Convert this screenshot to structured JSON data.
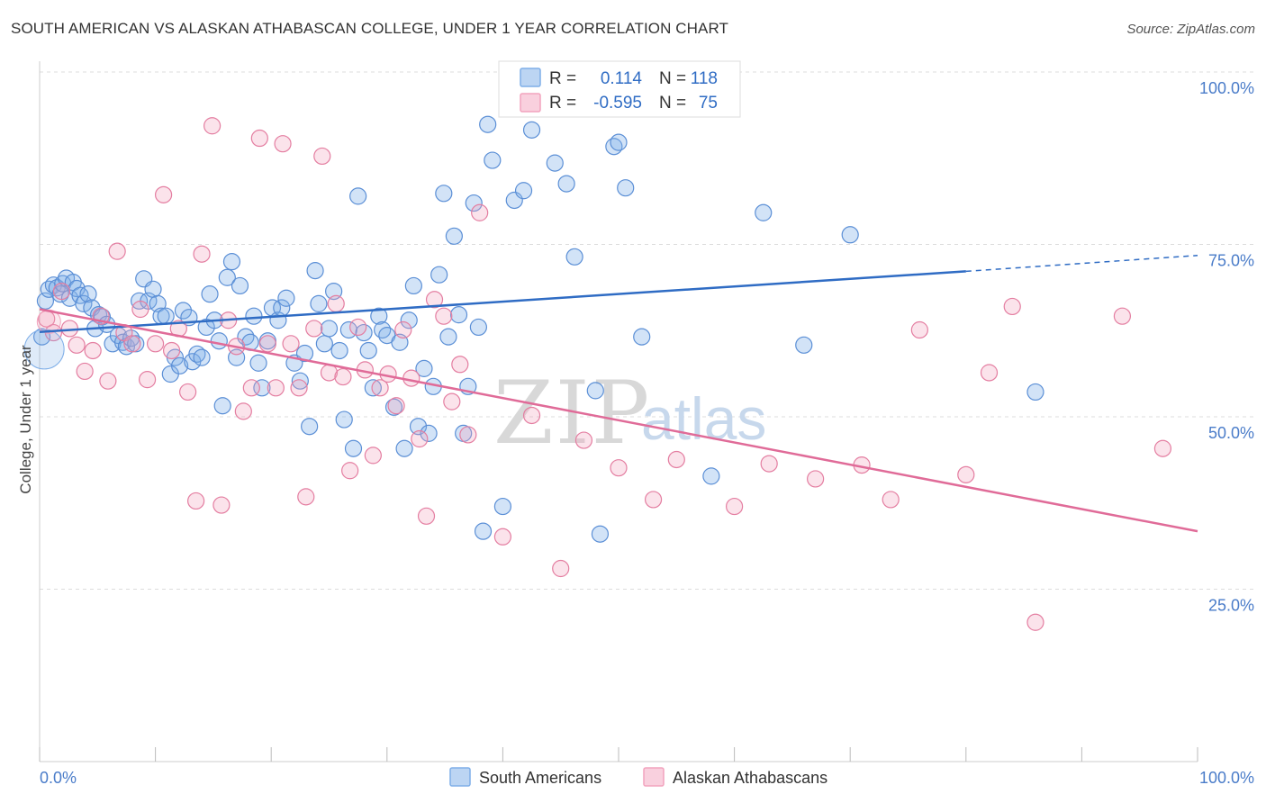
{
  "title": "SOUTH AMERICAN VS ALASKAN ATHABASCAN COLLEGE, UNDER 1 YEAR CORRELATION CHART",
  "source": "Source: ZipAtlas.com",
  "watermark": {
    "part1": "ZIP",
    "part2": "atlas"
  },
  "stats_legend": {
    "rows": [
      {
        "r_label": "R =",
        "r_value": "0.114",
        "n_label": "N =",
        "n_value": "118",
        "color": "#7eaee8"
      },
      {
        "r_label": "R =",
        "r_value": "-0.595",
        "n_label": "N =",
        "n_value": "75",
        "color": "#f2a3bd"
      }
    ]
  },
  "chart_data": {
    "type": "scatter",
    "title": "SOUTH AMERICAN VS ALASKAN ATHABASCAN COLLEGE, UNDER 1 YEAR CORRELATION CHART",
    "xlabel": "",
    "ylabel": "College, Under 1 year",
    "xlim": [
      0,
      100
    ],
    "ylim": [
      0,
      100
    ],
    "x_ticks": [
      "0.0%",
      "100.0%"
    ],
    "y_ticks": [
      {
        "value": 100,
        "label": "100.0%"
      },
      {
        "value": 75,
        "label": "75.0%"
      },
      {
        "value": 50,
        "label": "50.0%"
      },
      {
        "value": 25,
        "label": "25.0%"
      }
    ],
    "grid": "horizontal dashed",
    "legend_position": "bottom-center",
    "series": [
      {
        "name": "South Americans",
        "color": "#7eaee8",
        "stroke": "#5b8fd6",
        "trend_color": "#2f6cc4",
        "r": 0.114,
        "n": 118,
        "trend": {
          "x0": 0,
          "y0": 62.3,
          "x1": 80,
          "y1": 71.1,
          "dashed_to_x": 100,
          "dashed_to_y": 73.4
        },
        "points": [
          [
            0.2,
            61.6
          ],
          [
            0.5,
            66.8
          ],
          [
            0.8,
            68.5
          ],
          [
            1.2,
            69.1
          ],
          [
            1.5,
            68.7
          ],
          [
            1.8,
            67.8
          ],
          [
            2.0,
            69.3
          ],
          [
            2.3,
            70.1
          ],
          [
            2.6,
            67.2
          ],
          [
            2.9,
            69.5
          ],
          [
            3.2,
            68.6
          ],
          [
            3.5,
            67.6
          ],
          [
            3.8,
            66.4
          ],
          [
            4.2,
            67.8
          ],
          [
            4.5,
            65.8
          ],
          [
            4.8,
            62.8
          ],
          [
            5.1,
            64.8
          ],
          [
            5.4,
            64.5
          ],
          [
            5.8,
            63.4
          ],
          [
            6.3,
            60.6
          ],
          [
            6.8,
            61.8
          ],
          [
            7.2,
            60.8
          ],
          [
            7.5,
            60.2
          ],
          [
            7.9,
            61.4
          ],
          [
            8.3,
            60.6
          ],
          [
            8.6,
            66.8
          ],
          [
            9.0,
            70.0
          ],
          [
            9.4,
            66.8
          ],
          [
            9.8,
            68.5
          ],
          [
            10.2,
            66.4
          ],
          [
            10.5,
            64.6
          ],
          [
            10.9,
            64.6
          ],
          [
            11.3,
            56.2
          ],
          [
            11.7,
            58.6
          ],
          [
            12.1,
            57.4
          ],
          [
            12.4,
            65.4
          ],
          [
            12.9,
            64.4
          ],
          [
            13.2,
            58.0
          ],
          [
            13.6,
            59.1
          ],
          [
            14.0,
            58.6
          ],
          [
            14.4,
            63.0
          ],
          [
            14.7,
            67.8
          ],
          [
            15.1,
            64.0
          ],
          [
            15.5,
            61.0
          ],
          [
            15.8,
            51.6
          ],
          [
            16.2,
            70.2
          ],
          [
            16.6,
            72.5
          ],
          [
            17.0,
            58.6
          ],
          [
            17.3,
            69.0
          ],
          [
            17.8,
            61.6
          ],
          [
            18.2,
            60.8
          ],
          [
            18.5,
            64.6
          ],
          [
            18.9,
            57.8
          ],
          [
            19.2,
            54.2
          ],
          [
            19.7,
            61.0
          ],
          [
            20.1,
            65.8
          ],
          [
            20.6,
            64.0
          ],
          [
            20.9,
            65.8
          ],
          [
            21.3,
            67.2
          ],
          [
            22.0,
            57.8
          ],
          [
            22.5,
            55.2
          ],
          [
            22.9,
            59.2
          ],
          [
            23.3,
            48.6
          ],
          [
            23.8,
            71.2
          ],
          [
            24.1,
            66.4
          ],
          [
            24.6,
            60.6
          ],
          [
            25.0,
            62.8
          ],
          [
            25.4,
            68.2
          ],
          [
            25.9,
            59.6
          ],
          [
            26.3,
            49.6
          ],
          [
            26.7,
            62.6
          ],
          [
            27.1,
            45.4
          ],
          [
            27.5,
            82.0
          ],
          [
            28.0,
            62.2
          ],
          [
            28.4,
            59.6
          ],
          [
            28.8,
            54.2
          ],
          [
            29.3,
            64.6
          ],
          [
            29.6,
            62.6
          ],
          [
            30.0,
            61.8
          ],
          [
            30.6,
            51.4
          ],
          [
            31.1,
            60.8
          ],
          [
            31.5,
            45.4
          ],
          [
            31.9,
            64.0
          ],
          [
            32.3,
            69.0
          ],
          [
            32.7,
            48.6
          ],
          [
            33.2,
            57.0
          ],
          [
            33.6,
            47.6
          ],
          [
            34.0,
            54.4
          ],
          [
            34.5,
            70.6
          ],
          [
            34.9,
            82.4
          ],
          [
            35.3,
            61.6
          ],
          [
            35.8,
            76.2
          ],
          [
            36.2,
            64.8
          ],
          [
            36.6,
            47.6
          ],
          [
            37.0,
            54.4
          ],
          [
            37.5,
            81.0
          ],
          [
            37.9,
            63.0
          ],
          [
            38.3,
            33.4
          ],
          [
            38.7,
            92.4
          ],
          [
            39.1,
            87.2
          ],
          [
            40.0,
            37.0
          ],
          [
            41.0,
            81.4
          ],
          [
            41.8,
            82.8
          ],
          [
            42.5,
            91.6
          ],
          [
            44.0,
            99.6
          ],
          [
            44.5,
            86.8
          ],
          [
            45.5,
            83.8
          ],
          [
            46.2,
            73.2
          ],
          [
            48.0,
            53.8
          ],
          [
            48.4,
            33.0
          ],
          [
            48.7,
            99.8
          ],
          [
            49.6,
            89.2
          ],
          [
            50.0,
            89.8
          ],
          [
            50.6,
            83.2
          ],
          [
            52.0,
            61.6
          ],
          [
            58.0,
            41.4
          ],
          [
            62.5,
            79.6
          ],
          [
            66.0,
            60.4
          ],
          [
            70.0,
            76.4
          ],
          [
            86.0,
            53.6
          ]
        ]
      },
      {
        "name": "Alaskan Athabascans",
        "color": "#f2a3bd",
        "stroke": "#e47ea1",
        "trend_color": "#e06b98",
        "r": -0.595,
        "n": 75,
        "trend": {
          "x0": 0,
          "y0": 65.6,
          "x1": 100,
          "y1": 33.4
        },
        "points": [
          [
            0.6,
            64.2
          ],
          [
            1.2,
            62.2
          ],
          [
            1.9,
            68.2
          ],
          [
            2.6,
            62.8
          ],
          [
            3.2,
            60.4
          ],
          [
            3.9,
            56.6
          ],
          [
            4.6,
            59.6
          ],
          [
            5.3,
            64.6
          ],
          [
            5.9,
            55.2
          ],
          [
            6.7,
            74.0
          ],
          [
            7.3,
            62.2
          ],
          [
            8.0,
            60.6
          ],
          [
            8.7,
            65.6
          ],
          [
            9.3,
            55.4
          ],
          [
            10.0,
            60.6
          ],
          [
            10.7,
            82.2
          ],
          [
            11.4,
            59.6
          ],
          [
            12.0,
            62.8
          ],
          [
            12.8,
            53.6
          ],
          [
            13.5,
            37.8
          ],
          [
            14.0,
            73.6
          ],
          [
            14.9,
            92.2
          ],
          [
            15.7,
            37.2
          ],
          [
            16.3,
            64.0
          ],
          [
            17.0,
            60.2
          ],
          [
            17.6,
            50.8
          ],
          [
            18.3,
            54.2
          ],
          [
            19.0,
            90.4
          ],
          [
            19.7,
            60.6
          ],
          [
            20.4,
            54.2
          ],
          [
            21.0,
            89.6
          ],
          [
            21.7,
            60.6
          ],
          [
            22.4,
            54.2
          ],
          [
            23.0,
            38.4
          ],
          [
            23.7,
            62.8
          ],
          [
            24.4,
            87.8
          ],
          [
            25.0,
            56.4
          ],
          [
            25.6,
            66.4
          ],
          [
            26.2,
            55.8
          ],
          [
            26.8,
            42.2
          ],
          [
            27.5,
            63.0
          ],
          [
            28.1,
            56.8
          ],
          [
            28.8,
            44.4
          ],
          [
            29.4,
            54.2
          ],
          [
            30.1,
            56.2
          ],
          [
            30.8,
            51.6
          ],
          [
            31.4,
            62.6
          ],
          [
            32.1,
            55.6
          ],
          [
            32.8,
            46.8
          ],
          [
            33.4,
            35.6
          ],
          [
            34.1,
            67.0
          ],
          [
            34.9,
            64.6
          ],
          [
            35.6,
            52.2
          ],
          [
            36.3,
            57.6
          ],
          [
            37.0,
            47.4
          ],
          [
            38.0,
            79.6
          ],
          [
            40.0,
            32.6
          ],
          [
            42.5,
            50.2
          ],
          [
            45.0,
            28.0
          ],
          [
            47.0,
            46.6
          ],
          [
            50.0,
            42.6
          ],
          [
            53.0,
            38.0
          ],
          [
            55.0,
            43.8
          ],
          [
            60.0,
            37.0
          ],
          [
            63.0,
            43.2
          ],
          [
            67.0,
            41.0
          ],
          [
            71.0,
            43.0
          ],
          [
            73.5,
            38.0
          ],
          [
            76.0,
            62.6
          ],
          [
            80.0,
            41.6
          ],
          [
            82.0,
            56.4
          ],
          [
            84.0,
            66.0
          ],
          [
            86.0,
            20.2
          ],
          [
            93.5,
            64.6
          ],
          [
            97.0,
            45.4
          ]
        ]
      }
    ]
  }
}
